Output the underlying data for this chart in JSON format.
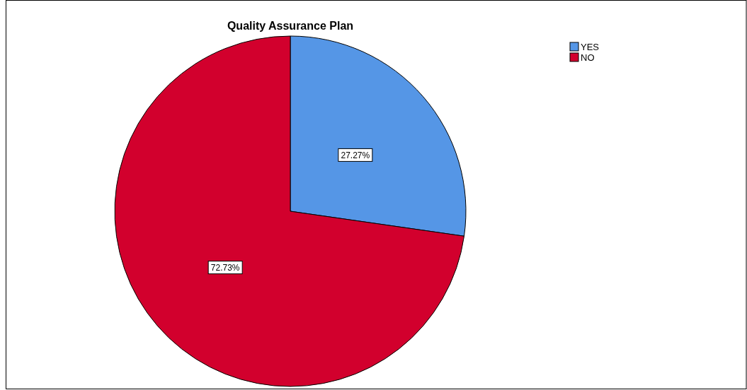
{
  "chart_data": {
    "type": "pie",
    "title": "Quality Assurance Plan",
    "categories": [
      "YES",
      "NO"
    ],
    "values": [
      27.27,
      72.73
    ],
    "colors": [
      "#5596e6",
      "#d2002d"
    ],
    "value_labels": [
      "27.27%",
      "72.73%"
    ],
    "legend": "top right"
  }
}
